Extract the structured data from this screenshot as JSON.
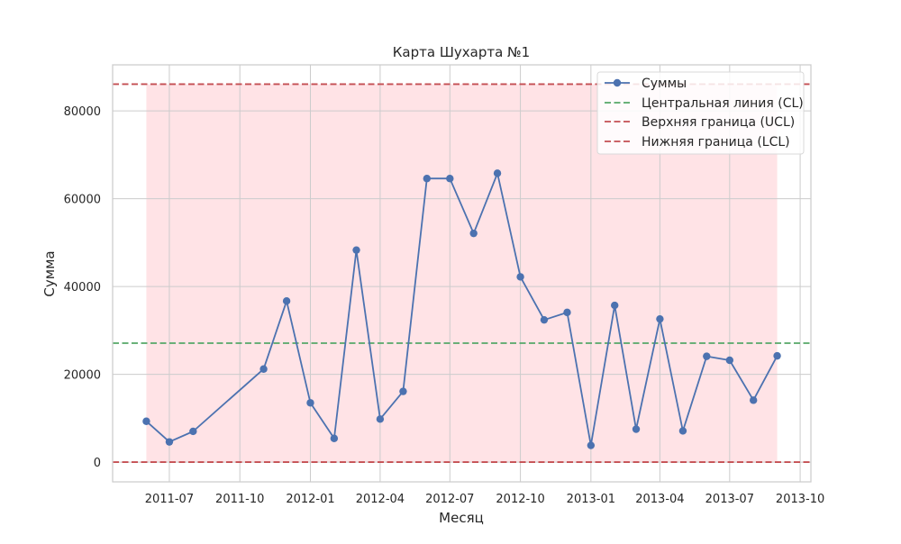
{
  "chart_data": {
    "type": "line",
    "title": "Карта Шухарта №1",
    "xlabel": "Месяц",
    "ylabel": "Сумма",
    "x_range": [
      "2011-04-18",
      "2013-10-15"
    ],
    "ylim": [
      -4500,
      90500
    ],
    "x_ticks": [
      {
        "date": "2011-07-01",
        "label": "2011-07"
      },
      {
        "date": "2011-10-01",
        "label": "2011-10"
      },
      {
        "date": "2012-01-01",
        "label": "2012-01"
      },
      {
        "date": "2012-04-01",
        "label": "2012-04"
      },
      {
        "date": "2012-07-01",
        "label": "2012-07"
      },
      {
        "date": "2012-10-01",
        "label": "2012-10"
      },
      {
        "date": "2013-01-01",
        "label": "2013-01"
      },
      {
        "date": "2013-04-01",
        "label": "2013-04"
      },
      {
        "date": "2013-07-01",
        "label": "2013-07"
      },
      {
        "date": "2013-10-01",
        "label": "2013-10"
      }
    ],
    "y_ticks": [
      {
        "value": 0,
        "label": "0"
      },
      {
        "value": 20000,
        "label": "20000"
      },
      {
        "value": 40000,
        "label": "40000"
      },
      {
        "value": 60000,
        "label": "60000"
      },
      {
        "value": 80000,
        "label": "80000"
      }
    ],
    "series": [
      {
        "name": "Суммы",
        "color": "#4c72b0",
        "points": [
          {
            "x": "2011-06-01",
            "y": 9300
          },
          {
            "x": "2011-07-01",
            "y": 4600
          },
          {
            "x": "2011-08-01",
            "y": 7000
          },
          {
            "x": "2011-11-01",
            "y": 21200
          },
          {
            "x": "2011-12-01",
            "y": 36700
          },
          {
            "x": "2012-01-01",
            "y": 13500
          },
          {
            "x": "2012-02-01",
            "y": 5400
          },
          {
            "x": "2012-03-01",
            "y": 48300
          },
          {
            "x": "2012-04-01",
            "y": 9800
          },
          {
            "x": "2012-05-01",
            "y": 16100
          },
          {
            "x": "2012-06-01",
            "y": 64600
          },
          {
            "x": "2012-07-01",
            "y": 64600
          },
          {
            "x": "2012-08-01",
            "y": 52100
          },
          {
            "x": "2012-09-01",
            "y": 65800
          },
          {
            "x": "2012-10-01",
            "y": 42200
          },
          {
            "x": "2012-11-01",
            "y": 32400
          },
          {
            "x": "2012-12-01",
            "y": 34100
          },
          {
            "x": "2013-01-01",
            "y": 3800
          },
          {
            "x": "2013-02-01",
            "y": 35700
          },
          {
            "x": "2013-03-01",
            "y": 7500
          },
          {
            "x": "2013-04-01",
            "y": 32600
          },
          {
            "x": "2013-05-01",
            "y": 7100
          },
          {
            "x": "2013-06-01",
            "y": 24100
          },
          {
            "x": "2013-07-01",
            "y": 23200
          },
          {
            "x": "2013-08-01",
            "y": 14100
          },
          {
            "x": "2013-09-01",
            "y": 24200
          }
        ]
      }
    ],
    "control_lines": [
      {
        "name": "Центральная линия (CL)",
        "value": 27100,
        "color": "#55a868"
      },
      {
        "name": "Верхняя граница (UCL)",
        "value": 86100,
        "color": "#c44e52"
      },
      {
        "name": "Нижняя граница (LCL)",
        "value": 0,
        "color": "#c44e52"
      }
    ],
    "control_band": {
      "x_from": "2011-06-01",
      "x_to": "2013-09-01",
      "y_from": 0,
      "y_to": 86100,
      "color": "#ffc0c8"
    },
    "grid": true,
    "legend_position": "top-right",
    "legend": [
      "Суммы",
      "Центральная линия (CL)",
      "Верхняя граница (UCL)",
      "Нижняя граница (LCL)"
    ]
  }
}
